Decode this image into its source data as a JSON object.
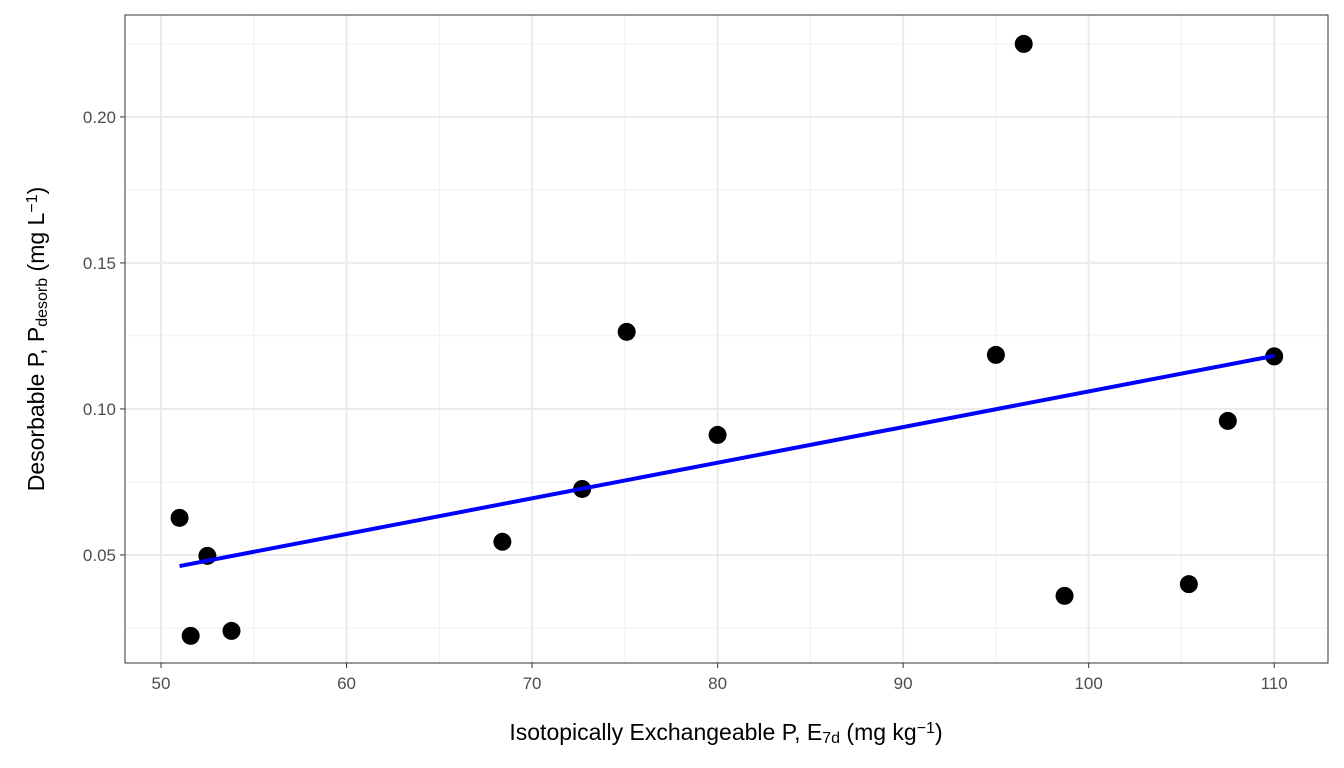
{
  "chart_data": {
    "type": "scatter",
    "xlabel": [
      "Isotopically Exchangeable P, E",
      "7d",
      " (mg kg",
      "−1",
      ")"
    ],
    "ylabel": [
      "Desorbable P, P",
      "desorb",
      " (mg L",
      "−1",
      ")"
    ],
    "xlim": [
      48.06,
      112.9
    ],
    "ylim": [
      0.013,
      0.2349
    ],
    "xticks": [
      50,
      60,
      70,
      80,
      90,
      100,
      110
    ],
    "yticks": [
      0.05,
      {
        "value": 0.1,
        "label": "0.10"
      },
      0.15,
      {
        "value": 0.2,
        "label": "0.20"
      }
    ],
    "xminor_ticks": [
      55,
      65,
      75,
      85,
      95,
      105
    ],
    "yminor_ticks": [
      0.025,
      0.075,
      0.125,
      0.175,
      0.225
    ],
    "grid": true,
    "series": [
      {
        "color": "#000000",
        "x": [
          51.0,
          52.5,
          51.6,
          53.8,
          68.4,
          72.7,
          75.1,
          80.0,
          95.0,
          96.5,
          98.7,
          105.4,
          107.5,
          110.0
        ],
        "values": [
          0.0627,
          0.0497,
          0.0223,
          0.024,
          0.0545,
          0.0726,
          0.1264,
          0.0911,
          0.1185,
          0.225,
          0.036,
          0.04,
          0.0959,
          0.118
        ]
      }
    ],
    "trend": {
      "color": "#0000ff",
      "x": [
        51.0,
        110.0
      ],
      "values": [
        0.0462,
        0.1182
      ]
    }
  }
}
